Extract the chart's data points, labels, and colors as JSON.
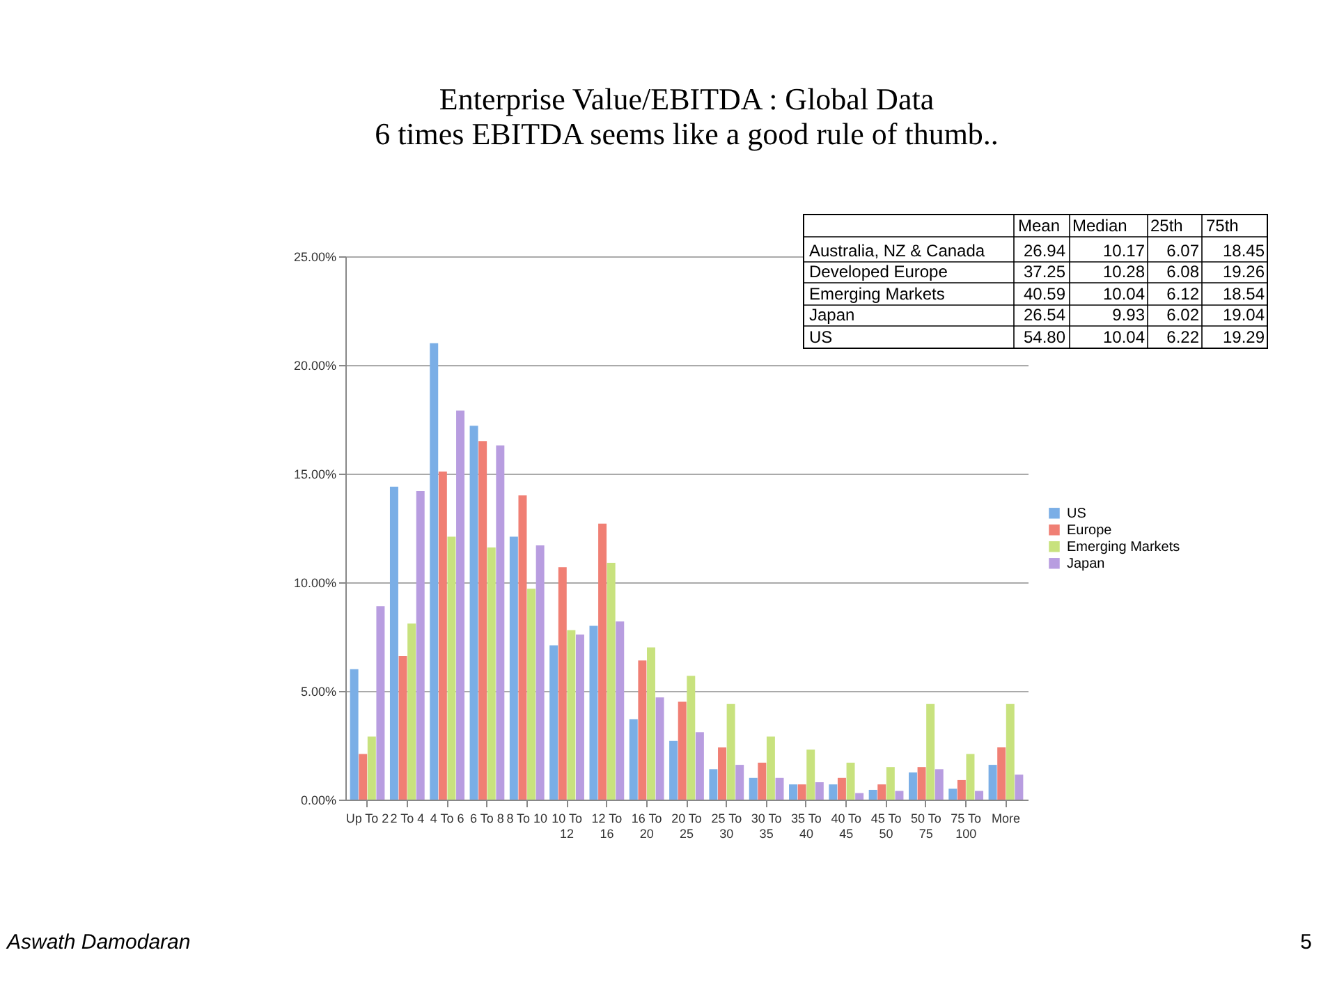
{
  "chart_data": {
    "type": "bar",
    "title": "Enterprise Value/EBITDA : Global Data",
    "subtitle": "6 times EBITDA seems like a good rule of thumb..",
    "categories": [
      "Up To 2",
      "2 To 4",
      "4 To 6",
      "6 To 8",
      "8 To 10",
      "10 To 12",
      "12 To 16",
      "16 To 20",
      "20 To 25",
      "25 To 30",
      "30 To 35",
      "35 To 40",
      "40 To 45",
      "45 To 50",
      "50 To 75",
      "75 To 100",
      "More"
    ],
    "series": [
      {
        "name": "US",
        "color": "#7aaee6",
        "values": [
          6.0,
          14.4,
          21.0,
          17.2,
          12.1,
          7.1,
          8.0,
          3.7,
          2.7,
          1.4,
          1.0,
          0.7,
          0.7,
          0.45,
          1.25,
          0.5,
          1.6
        ]
      },
      {
        "name": "Europe",
        "color": "#f07f74",
        "values": [
          2.1,
          6.6,
          15.1,
          16.5,
          14.0,
          10.7,
          12.7,
          6.4,
          4.5,
          2.4,
          1.7,
          0.7,
          1.0,
          0.7,
          1.5,
          0.9,
          2.4
        ]
      },
      {
        "name": "Emerging Markets",
        "color": "#c8e27e",
        "values": [
          2.9,
          8.1,
          12.1,
          11.6,
          9.7,
          7.8,
          10.9,
          7.0,
          5.7,
          4.4,
          2.9,
          2.3,
          1.7,
          1.5,
          4.4,
          2.1,
          4.4
        ]
      },
      {
        "name": "Japan",
        "color": "#b89de0",
        "values": [
          8.9,
          14.2,
          17.9,
          16.3,
          11.7,
          7.6,
          8.2,
          4.7,
          3.1,
          1.6,
          1.0,
          0.8,
          0.3,
          0.4,
          1.4,
          0.4,
          1.15
        ]
      }
    ],
    "ylim": [
      0,
      25
    ],
    "yticks": [
      {
        "value": 0,
        "label": "0.00%"
      },
      {
        "value": 5,
        "label": "5.00%"
      },
      {
        "value": 10,
        "label": "10.00%"
      },
      {
        "value": 15,
        "label": "15.00%"
      },
      {
        "value": 20,
        "label": "20.00%"
      },
      {
        "value": 25,
        "label": "25.00%"
      }
    ],
    "grid": "y",
    "legend": "right",
    "annotations": [
      "Mean",
      "Median",
      "25th",
      "75th",
      "Australia, NZ & Canada",
      "26.94",
      "10.17",
      "6.07",
      "18.45",
      "Developed Europe",
      "37.25",
      "10.28",
      "6.08",
      "19.26",
      "Emerging Markets",
      "40.59",
      "10.04",
      "6.12",
      "18.54",
      "Japan",
      "26.54",
      "9.93",
      "6.02",
      "19.04",
      "US",
      "54.80",
      "10.04",
      "6.22",
      "19.29",
      "Aswath Damodaran",
      "5"
    ]
  }
}
